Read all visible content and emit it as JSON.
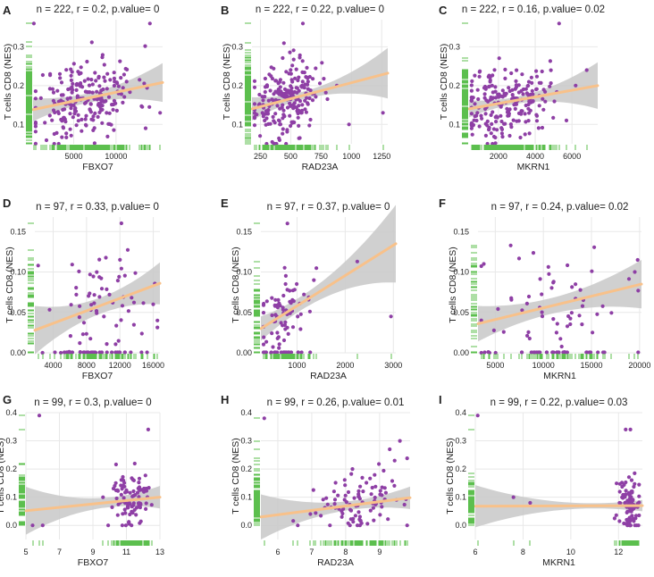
{
  "figure": {
    "y_axis_label": "T cells CD8 (NES)",
    "colors": {
      "point": "#8e3fa5",
      "fit_line": "#f8c18a",
      "ci_band": "#c8c8c8",
      "rug": "#5cbf4e",
      "grid": "#e8e8e8",
      "panel_bg": "#ffffff",
      "text": "#222222"
    }
  },
  "chart_data": [
    {
      "letter": "A",
      "type": "scatter",
      "title": "n = 222, r = 0.2, p.value= 0",
      "xlabel": "FBXO7",
      "ylabel": "T cells CD8 (NES)",
      "xlim": [
        200,
        15500
      ],
      "ylim": [
        0.05,
        0.37
      ],
      "xticks": [
        5000,
        10000
      ],
      "xticklabels": [
        "5000",
        "10000"
      ],
      "yticks": [
        0.1,
        0.2,
        0.3
      ],
      "yticklabels": [
        "0.1",
        "0.2",
        "0.3"
      ],
      "fit": {
        "x0": 200,
        "y0": 0.138,
        "x1": 15500,
        "y1": 0.208
      },
      "ci": {
        "left": 0.03,
        "mid": 0.013,
        "right": 0.05
      },
      "n": 222,
      "seed": 11,
      "xcenter": 6500,
      "xspread": 3000,
      "ycenter": 0.165,
      "yspread": 0.065,
      "extra": [
        [
          14000,
          0.36
        ],
        [
          15200,
          0.13
        ],
        [
          300,
          0.36
        ],
        [
          13500,
          0.09
        ]
      ]
    },
    {
      "letter": "B",
      "type": "scatter",
      "title": "n = 222, r = 0.22, p.value= 0",
      "xlabel": "RAD23A",
      "ylabel": "T cells CD8 (NES)",
      "xlim": [
        180,
        1300
      ],
      "ylim": [
        0.05,
        0.37
      ],
      "xticks": [
        250,
        500,
        750,
        1000,
        1250
      ],
      "xticklabels": [
        "250",
        "500",
        "750",
        "1000",
        "1250"
      ],
      "yticks": [
        0.1,
        0.2,
        0.3
      ],
      "yticklabels": [
        "0.1",
        "0.2",
        "0.3"
      ],
      "fit": {
        "x0": 180,
        "y0": 0.14,
        "x1": 1300,
        "y1": 0.232
      },
      "ci": {
        "left": 0.03,
        "mid": 0.012,
        "right": 0.065
      },
      "n": 222,
      "seed": 23,
      "xcenter": 450,
      "xspread": 140,
      "ycenter": 0.16,
      "yspread": 0.06,
      "extra": [
        [
          1260,
          0.13
        ],
        [
          980,
          0.1
        ],
        [
          880,
          0.2
        ],
        [
          600,
          0.36
        ]
      ]
    },
    {
      "letter": "C",
      "type": "scatter",
      "title": "n = 222, r = 0.16, p.value= 0.02",
      "xlabel": "MKRN1",
      "ylabel": "T cells CD8 (NES)",
      "xlim": [
        400,
        7400
      ],
      "ylim": [
        0.05,
        0.37
      ],
      "xticks": [
        2000,
        4000,
        6000
      ],
      "xticklabels": [
        "2000",
        "4000",
        "6000"
      ],
      "yticks": [
        0.1,
        0.2,
        0.3
      ],
      "yticklabels": [
        "0.1",
        "0.2",
        "0.3"
      ],
      "fit": {
        "x0": 400,
        "y0": 0.14,
        "x1": 7400,
        "y1": 0.2
      },
      "ci": {
        "left": 0.022,
        "mid": 0.012,
        "right": 0.06
      },
      "n": 222,
      "seed": 37,
      "xcenter": 2300,
      "xspread": 1200,
      "ycenter": 0.16,
      "yspread": 0.06,
      "extra": [
        [
          5300,
          0.36
        ],
        [
          6800,
          0.24
        ],
        [
          6200,
          0.2
        ],
        [
          5700,
          0.11
        ]
      ]
    },
    {
      "letter": "D",
      "type": "scatter",
      "title": "n = 97, r = 0.33, p.value= 0",
      "xlabel": "FBXO7",
      "ylabel": "T cells CD8 (NES)",
      "xlim": [
        1800,
        16800
      ],
      "ylim": [
        0.0,
        0.168
      ],
      "xticks": [
        4000,
        8000,
        12000,
        16000
      ],
      "xticklabels": [
        "4000",
        "8000",
        "12000",
        "16000"
      ],
      "yticks": [
        0.0,
        0.05,
        0.1,
        0.15
      ],
      "yticklabels": [
        "0.00",
        "0.05",
        "0.10",
        "0.15"
      ],
      "fit": {
        "x0": 1800,
        "y0": 0.028,
        "x1": 16800,
        "y1": 0.086
      },
      "ci": {
        "left": 0.03,
        "mid": 0.01,
        "right": 0.026
      },
      "n": 97,
      "seed": 41,
      "xcenter": 9500,
      "xspread": 3200,
      "ycenter": 0.06,
      "yspread": 0.045,
      "floor": 0.28,
      "extra": [
        [
          2200,
          0.108
        ],
        [
          16000,
          0.06
        ],
        [
          16500,
          0.04
        ]
      ]
    },
    {
      "letter": "E",
      "type": "scatter",
      "title": "n = 97, r = 0.37, p.value= 0",
      "xlabel": "RAD23A",
      "ylabel": "T cells CD8 (NES)",
      "xlim": [
        250,
        3050
      ],
      "ylim": [
        0.0,
        0.168
      ],
      "xticks": [
        1000,
        2000,
        3000
      ],
      "xticklabels": [
        "1000",
        "2000",
        "3000"
      ],
      "yticks": [
        0.0,
        0.05,
        0.1,
        0.15
      ],
      "yticklabels": [
        "0.00",
        "0.05",
        "0.10",
        "0.15"
      ],
      "fit": {
        "x0": 250,
        "y0": 0.03,
        "x1": 3050,
        "y1": 0.135
      },
      "ci": {
        "left": 0.015,
        "mid": 0.012,
        "right": 0.048
      },
      "n": 97,
      "seed": 53,
      "xcenter": 700,
      "xspread": 280,
      "ycenter": 0.05,
      "yspread": 0.035,
      "floor": 0.25,
      "extra": [
        [
          2250,
          0.113
        ],
        [
          2950,
          0.045
        ],
        [
          1350,
          0.09
        ],
        [
          800,
          0.16
        ]
      ]
    },
    {
      "letter": "F",
      "type": "scatter",
      "title": "n = 97, r = 0.24, p.value= 0.02",
      "xlabel": "MKRN1",
      "ylabel": "T cells CD8 (NES)",
      "xlim": [
        3200,
        20200
      ],
      "ylim": [
        0.0,
        0.168
      ],
      "xticks": [
        5000,
        10000,
        15000,
        20000
      ],
      "xticklabels": [
        "5000",
        "10000",
        "15000",
        "20000"
      ],
      "yticks": [
        0.0,
        0.05,
        0.1,
        0.15
      ],
      "yticklabels": [
        "0.00",
        "0.05",
        "0.10",
        "0.15"
      ],
      "fit": {
        "x0": 3200,
        "y0": 0.036,
        "x1": 20200,
        "y1": 0.085
      },
      "ci": {
        "left": 0.022,
        "mid": 0.01,
        "right": 0.03
      },
      "n": 97,
      "seed": 67,
      "xcenter": 11000,
      "xspread": 3500,
      "ycenter": 0.06,
      "yspread": 0.045,
      "floor": 0.3,
      "extra": [
        [
          19800,
          0.115
        ],
        [
          19500,
          0.1
        ],
        [
          3800,
          0.11
        ]
      ]
    },
    {
      "letter": "G",
      "type": "scatter",
      "title": "n = 99, r = 0.3, p.value= 0",
      "xlabel": "FBXO7",
      "ylabel": "T cells CD8 (NES)",
      "xlim": [
        5,
        13
      ],
      "ylim": [
        -0.05,
        0.4
      ],
      "xticks": [
        5,
        7,
        9,
        11,
        13
      ],
      "xticklabels": [
        "5",
        "7",
        "9",
        "11",
        "13"
      ],
      "yticks": [
        0.0,
        0.1,
        0.2,
        0.3,
        0.4
      ],
      "yticklabels": [
        "0.0",
        "0.1",
        "0.2",
        "0.3",
        "0.4"
      ],
      "fit": {
        "x0": 5,
        "y0": 0.052,
        "x1": 13,
        "y1": 0.1
      },
      "ci": {
        "left": 0.085,
        "mid": 0.02,
        "right": 0.04
      },
      "n": 99,
      "seed": 71,
      "xcenter": 11.3,
      "xspread": 0.65,
      "ycenter": 0.06,
      "yspread": 0.07,
      "extra": [
        [
          5.8,
          0.39
        ],
        [
          5.4,
          0.0
        ],
        [
          6.0,
          0.0
        ],
        [
          9.6,
          0.1
        ],
        [
          12.3,
          0.34
        ]
      ]
    },
    {
      "letter": "H",
      "type": "scatter",
      "title": "n = 99, r = 0.26, p.value= 0.01",
      "xlabel": "RAD23A",
      "ylabel": "T cells CD8 (NES)",
      "xlim": [
        5.5,
        9.9
      ],
      "ylim": [
        -0.05,
        0.4
      ],
      "xticks": [
        6,
        7,
        8,
        9
      ],
      "xticklabels": [
        "6",
        "7",
        "8",
        "9"
      ],
      "yticks": [
        0.0,
        0.1,
        0.2,
        0.3,
        0.4
      ],
      "yticklabels": [
        "0.0",
        "0.1",
        "0.2",
        "0.3",
        "0.4"
      ],
      "fit": {
        "x0": 5.5,
        "y0": 0.03,
        "x1": 9.9,
        "y1": 0.098
      },
      "ci": {
        "left": 0.08,
        "mid": 0.018,
        "right": 0.04
      },
      "n": 99,
      "seed": 83,
      "xcenter": 8.4,
      "xspread": 0.7,
      "ycenter": 0.07,
      "yspread": 0.07,
      "extra": [
        [
          5.6,
          0.38
        ],
        [
          9.6,
          0.3
        ],
        [
          8.2,
          0.2
        ],
        [
          9.3,
          0.27
        ]
      ]
    },
    {
      "letter": "I",
      "type": "scatter",
      "title": "n = 99, r = 0.22, p.value= 0.03",
      "xlabel": "MKRN1",
      "ylabel": "T cells CD8 (NES)",
      "xlim": [
        6,
        13
      ],
      "ylim": [
        -0.05,
        0.4
      ],
      "xticks": [
        6,
        8,
        10,
        12
      ],
      "xticklabels": [
        "6",
        "8",
        "10",
        "12"
      ],
      "yticks": [
        0.0,
        0.1,
        0.2,
        0.3,
        0.4
      ],
      "yticklabels": [
        "0.0",
        "0.1",
        "0.2",
        "0.3",
        "0.4"
      ],
      "fit": {
        "x0": 6,
        "y0": 0.068,
        "x1": 13,
        "y1": 0.07
      },
      "ci": {
        "left": 0.075,
        "mid": 0.015,
        "right": 0.02
      },
      "n": 99,
      "seed": 97,
      "xcenter": 12.4,
      "xspread": 0.28,
      "ycenter": 0.06,
      "yspread": 0.07,
      "extra": [
        [
          6.1,
          0.39
        ],
        [
          7.6,
          0.1
        ],
        [
          8.3,
          0.08
        ],
        [
          12.3,
          0.34
        ],
        [
          12.5,
          0.34
        ]
      ]
    }
  ]
}
